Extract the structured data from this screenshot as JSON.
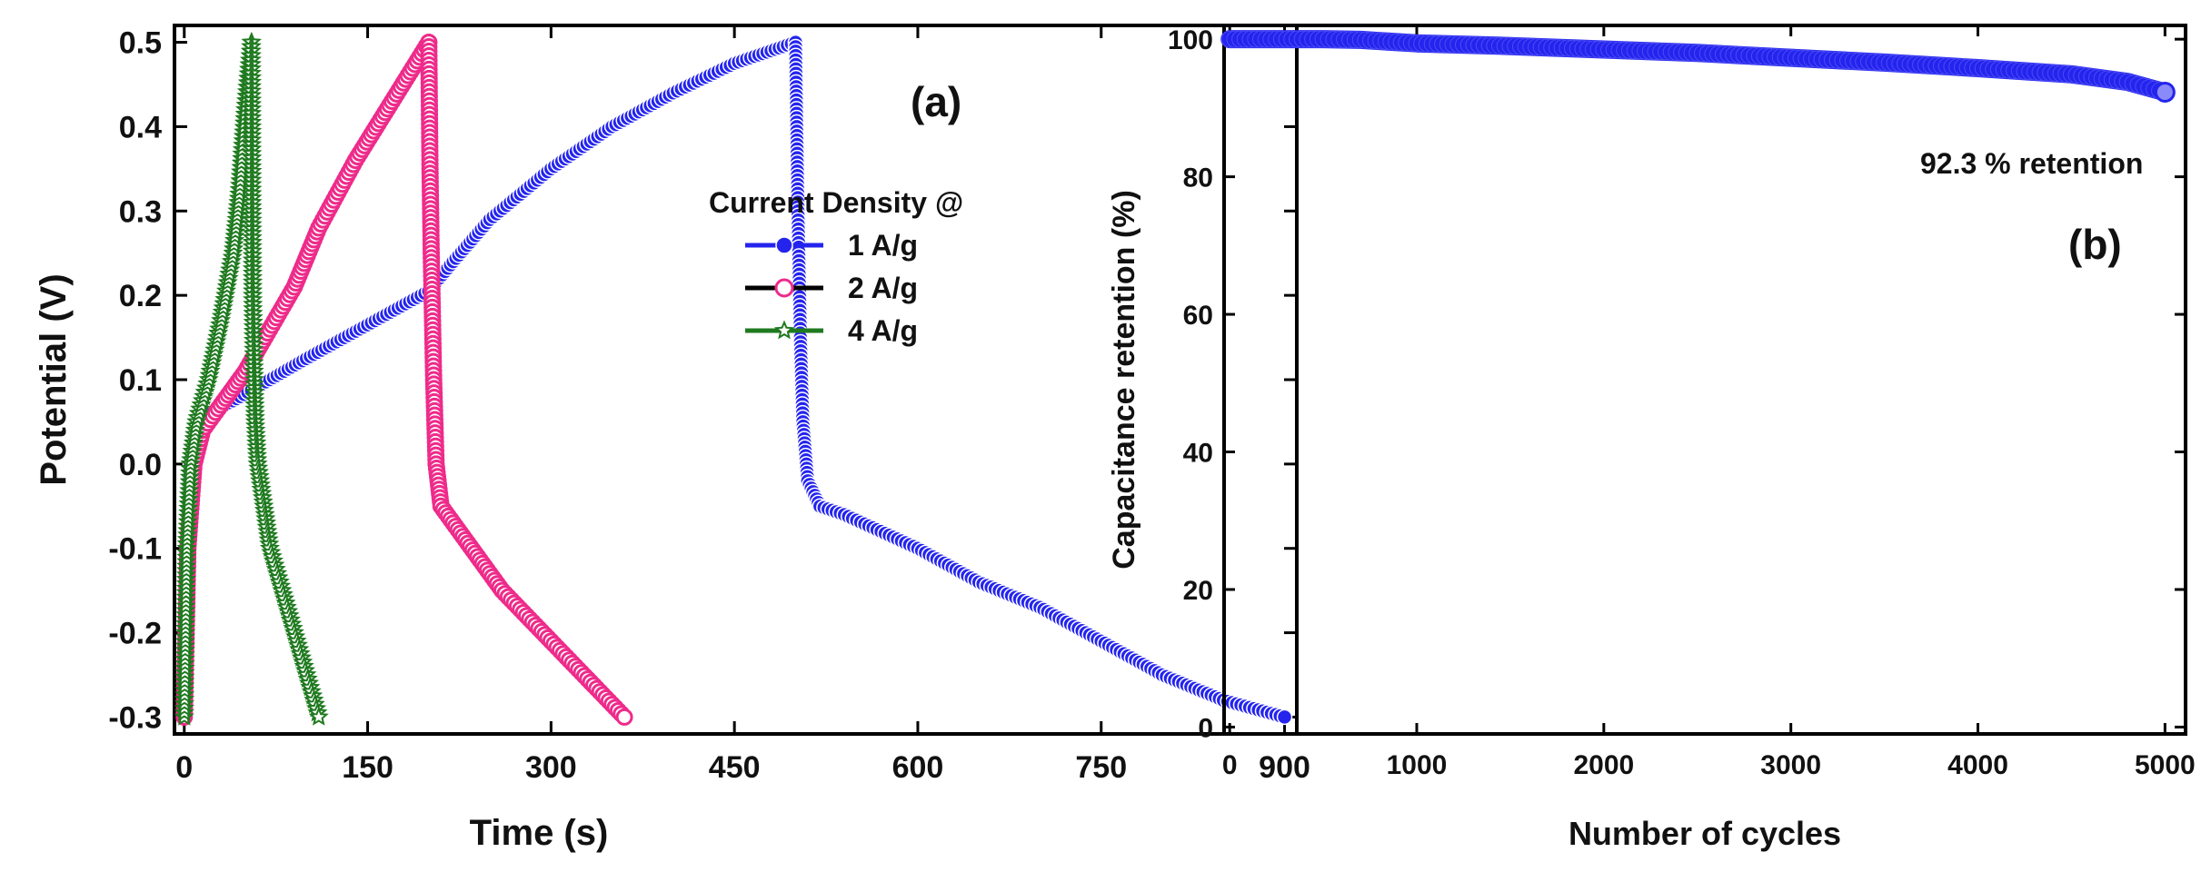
{
  "chart_data": [
    {
      "type": "line",
      "panel_label": "(a)",
      "xlabel": "Time (s)",
      "ylabel": "Potential (V)",
      "xlim": [
        -8,
        910
      ],
      "ylim": [
        -0.32,
        0.52
      ],
      "xticks": [
        0,
        150,
        300,
        450,
        600,
        750,
        900
      ],
      "yticks": [
        -0.3,
        -0.2,
        -0.1,
        0.0,
        0.1,
        0.2,
        0.3,
        0.4,
        0.5
      ],
      "ytick_labels": [
        "-0.3",
        "-0.2",
        "-0.1",
        "0.0",
        "0.1",
        "0.2",
        "0.3",
        "0.4",
        "0.5"
      ],
      "legend_title": "Current Density @",
      "legend_position": "right",
      "series": [
        {
          "name": "1 A/g",
          "color": "#2424ee",
          "marker": "circle",
          "charge": {
            "x": [
              0,
              2,
              5,
              10,
              20,
              40,
              70,
              100,
              150,
              200,
              220,
              250,
              300,
              350,
              400,
              450,
              500
            ],
            "y": [
              -0.3,
              -0.15,
              0.0,
              0.04,
              0.06,
              0.075,
              0.1,
              0.125,
              0.165,
              0.205,
              0.24,
              0.29,
              0.35,
              0.4,
              0.44,
              0.475,
              0.5
            ]
          },
          "discharge": {
            "x": [
              500,
              502,
              504,
              506,
              510,
              520,
              540,
              600,
              650,
              700,
              750,
              800,
              850,
              900
            ],
            "y": [
              0.5,
              0.3,
              0.15,
              0.05,
              -0.02,
              -0.05,
              -0.06,
              -0.1,
              -0.14,
              -0.17,
              -0.21,
              -0.25,
              -0.28,
              -0.3
            ]
          }
        },
        {
          "name": "2 A/g",
          "color": "#ee2b8a",
          "marker": "open-circle",
          "charge": {
            "x": [
              0,
              3,
              8,
              15,
              30,
              50,
              70,
              90,
              110,
              140,
              170,
              200
            ],
            "y": [
              -0.3,
              -0.1,
              0.0,
              0.04,
              0.07,
              0.11,
              0.16,
              0.21,
              0.28,
              0.36,
              0.43,
              0.5
            ]
          },
          "discharge": {
            "x": [
              200,
              201,
              202,
              204,
              206,
              210,
              220,
              240,
              260,
              280,
              300,
              320,
              340,
              360
            ],
            "y": [
              0.5,
              0.35,
              0.25,
              0.1,
              0.0,
              -0.05,
              -0.07,
              -0.11,
              -0.15,
              -0.18,
              -0.21,
              -0.24,
              -0.27,
              -0.3
            ]
          }
        },
        {
          "name": "4 A/g",
          "color": "#1f7a1f",
          "marker": "star",
          "charge": {
            "x": [
              0,
              2,
              5,
              10,
              20,
              30,
              40,
              45,
              50,
              55
            ],
            "y": [
              -0.3,
              -0.1,
              0.0,
              0.05,
              0.1,
              0.17,
              0.25,
              0.32,
              0.42,
              0.5
            ]
          },
          "discharge": {
            "x": [
              55,
              55.5,
              56,
              57,
              58,
              60,
              65,
              70,
              80,
              90,
              100,
              110
            ],
            "y": [
              0.5,
              0.31,
              0.2,
              0.12,
              0.05,
              0.0,
              -0.05,
              -0.1,
              -0.15,
              -0.2,
              -0.25,
              -0.3
            ]
          }
        }
      ]
    },
    {
      "type": "scatter",
      "panel_label": "(b)",
      "xlabel": "Number of cycles",
      "ylabel": "Capacitance retention (%)",
      "xlim": [
        -30,
        5110
      ],
      "ylim": [
        -1,
        102
      ],
      "xticks": [
        0,
        1000,
        2000,
        3000,
        4000,
        5000
      ],
      "yticks": [
        0,
        20,
        40,
        60,
        80,
        100
      ],
      "annotation": "92.3 % retention",
      "series": [
        {
          "name": "Capacitance retention",
          "color": "#2424ee",
          "marker": "circle",
          "x": [
            0,
            250,
            500,
            700,
            1000,
            1500,
            2000,
            2500,
            3000,
            3500,
            4000,
            4500,
            4800,
            5000
          ],
          "y": [
            100,
            100,
            100,
            99.9,
            99.4,
            99.0,
            98.5,
            98.0,
            97.3,
            96.6,
            95.8,
            94.9,
            93.8,
            92.3
          ]
        }
      ]
    }
  ]
}
